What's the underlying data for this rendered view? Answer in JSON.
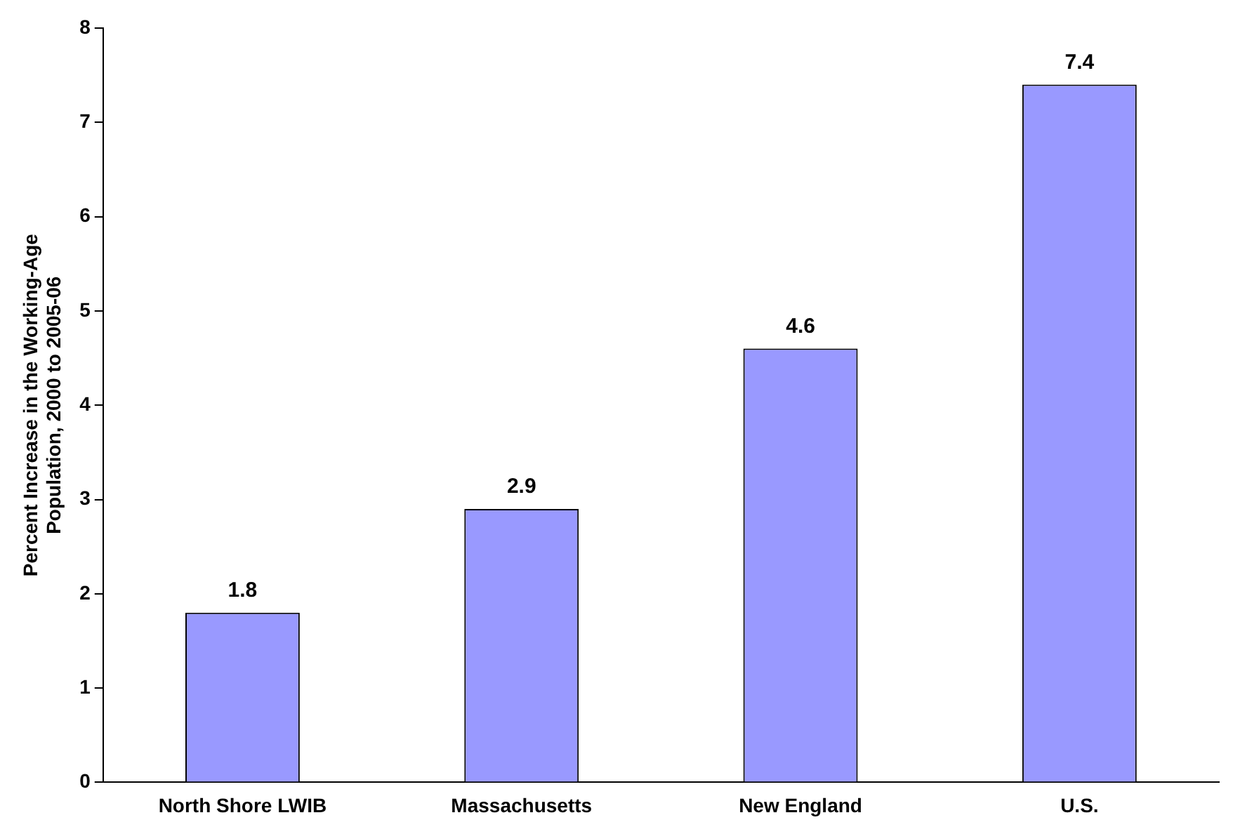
{
  "chart_data": {
    "type": "bar",
    "ylabel": "Percent Increase in the Working-Age Population, 2000 to 2005-06",
    "categories": [
      "North Shore LWIB",
      "Massachusetts",
      "New England",
      "U.S."
    ],
    "values": [
      1.8,
      2.9,
      4.6,
      7.4
    ],
    "color": "#9999ff",
    "ylim": [
      0,
      8
    ],
    "yticks": [
      0,
      1,
      2,
      3,
      4,
      5,
      6,
      7,
      8
    ],
    "grid": false,
    "data_labels": true
  }
}
